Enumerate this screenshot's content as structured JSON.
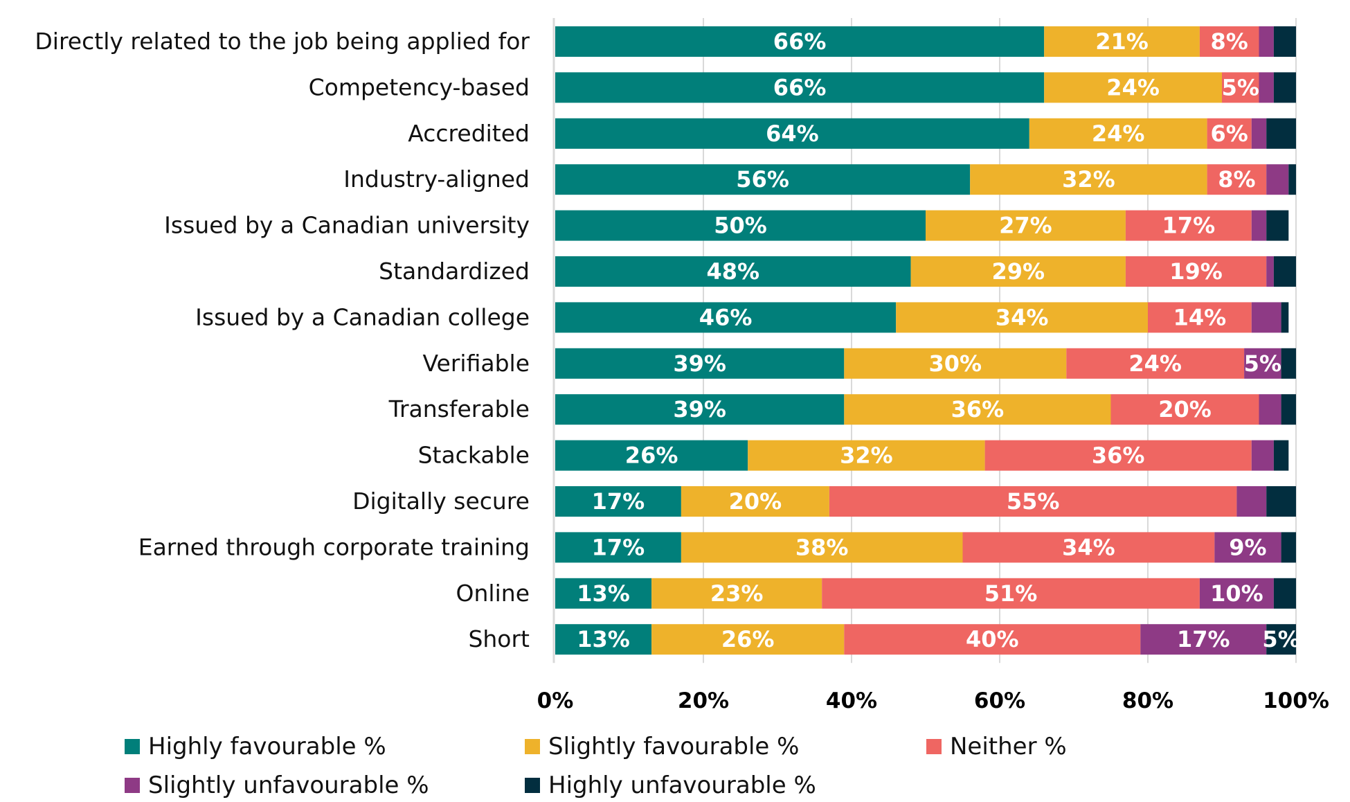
{
  "chart_data": {
    "type": "bar",
    "orientation": "horizontal",
    "stacked": "percent",
    "title": "",
    "xlabel": "",
    "ylabel": "",
    "xlim": [
      0,
      100
    ],
    "x_ticks": [
      "0%",
      "20%",
      "40%",
      "60%",
      "80%",
      "100%"
    ],
    "grid": true,
    "legend_position": "bottom",
    "categories": [
      "Directly related to the job being applied for",
      "Competency-based",
      "Accredited",
      "Industry-aligned",
      "Issued by a Canadian university",
      "Standardized",
      "Issued by a Canadian college",
      "Verifiable",
      "Transferable",
      "Stackable",
      "Digitally secure",
      "Earned through corporate training",
      "Online",
      "Short"
    ],
    "series": [
      {
        "name": "Highly favourable %",
        "color": "#017F7A",
        "values": [
          66,
          66,
          64,
          56,
          50,
          48,
          46,
          39,
          39,
          26,
          17,
          17,
          13,
          13
        ],
        "labels": [
          "66%",
          "66%",
          "64%",
          "56%",
          "50%",
          "48%",
          "46%",
          "39%",
          "39%",
          "26%",
          "17%",
          "17%",
          "13%",
          "13%"
        ]
      },
      {
        "name": "Slightly favourable %",
        "color": "#EEB22B",
        "values": [
          21,
          24,
          24,
          32,
          27,
          29,
          34,
          30,
          36,
          32,
          20,
          38,
          23,
          26
        ],
        "labels": [
          "21%",
          "24%",
          "24%",
          "32%",
          "27%",
          "29%",
          "34%",
          "30%",
          "36%",
          "32%",
          "20%",
          "38%",
          "23%",
          "26%"
        ]
      },
      {
        "name": "Neither %",
        "color": "#EF6662",
        "values": [
          8,
          5,
          6,
          8,
          17,
          19,
          14,
          24,
          20,
          36,
          55,
          34,
          51,
          40
        ],
        "labels": [
          "8%",
          "5%",
          "6%",
          "8%",
          "17%",
          "19%",
          "14%",
          "24%",
          "20%",
          "36%",
          "55%",
          "34%",
          "51%",
          "40%"
        ]
      },
      {
        "name": "Slightly unfavourable %",
        "color": "#8E3A85",
        "values": [
          2,
          2,
          2,
          3,
          2,
          1,
          4,
          5,
          3,
          3,
          4,
          9,
          10,
          17
        ],
        "labels": [
          "",
          "",
          "",
          "",
          "",
          "",
          "",
          "5%",
          "",
          "",
          "",
          "9%",
          "10%",
          "17%"
        ]
      },
      {
        "name": "Highly unfavourable %",
        "color": "#022E3F",
        "values": [
          3,
          3,
          4,
          1,
          3,
          3,
          1,
          2,
          2,
          2,
          4,
          3,
          4,
          5
        ],
        "labels": [
          "",
          "",
          "",
          "",
          "",
          "",
          "",
          "",
          "",
          "",
          "",
          "",
          "",
          "5%"
        ]
      }
    ]
  }
}
